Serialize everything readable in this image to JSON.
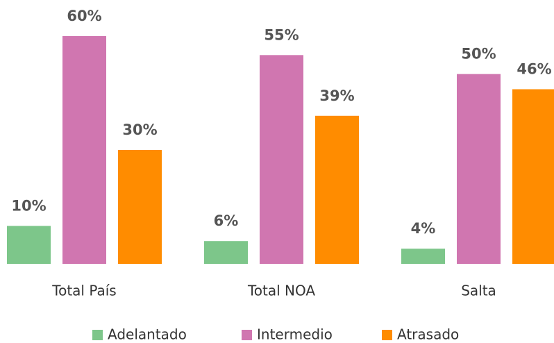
{
  "chart_data": {
    "type": "bar",
    "categories": [
      "Total País",
      "Total NOA",
      "Salta"
    ],
    "series": [
      {
        "name": "Adelantado",
        "color": "#7dc68a",
        "values": [
          10,
          6,
          4
        ],
        "value_labels": [
          "10%",
          "6%",
          "4%"
        ]
      },
      {
        "name": "Intermedio",
        "color": "#d076b0",
        "values": [
          60,
          55,
          50
        ],
        "value_labels": [
          "60%",
          "55%",
          "50%"
        ]
      },
      {
        "name": "Atrasado",
        "color": "#ff8c00",
        "values": [
          30,
          39,
          46
        ],
        "value_labels": [
          "30%",
          "39%",
          "46%"
        ]
      }
    ],
    "legend": "bottom"
  }
}
